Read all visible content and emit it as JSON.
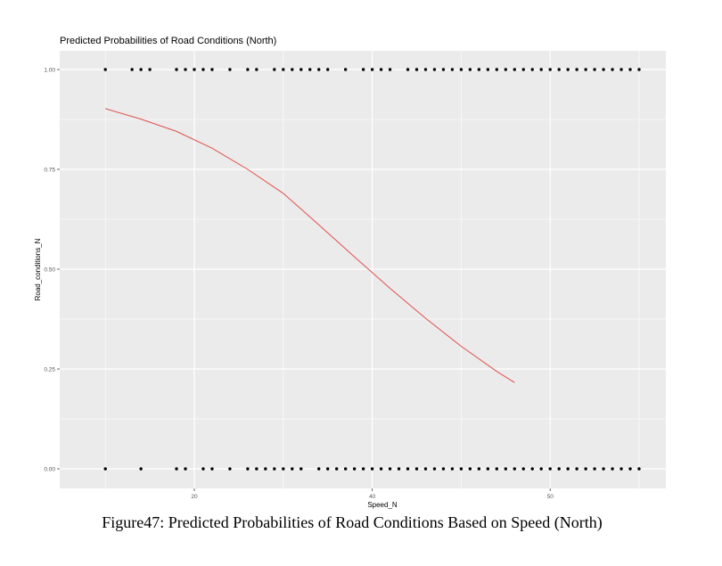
{
  "chart_data": {
    "type": "scatter",
    "title": "Predicted Probabilities of Road Conditions (North)",
    "xlabel": "Speed_N",
    "ylabel": "Road_conditions_N",
    "xlim": [
      7.5,
      57.5
    ],
    "ylim": [
      -0.05,
      1.05
    ],
    "x_ticks": [
      20,
      40,
      50
    ],
    "x_tick_labels": [
      "20",
      "40",
      "50"
    ],
    "y_ticks": [
      0,
      0.25,
      0.5,
      0.75,
      1.0
    ],
    "y_tick_labels": [
      "0.00",
      "0.25",
      "0.50",
      "0.75",
      "1.00"
    ],
    "grid": true,
    "panel_background": "#ebebeb",
    "grid_color": "#ffffff",
    "point_color": "#000000",
    "curve_color": "#e0504a",
    "series": [
      {
        "type": "scatter",
        "points_y1_x": [
          10,
          13,
          14,
          15,
          18,
          19,
          20,
          21,
          22,
          24,
          26,
          27,
          29,
          30,
          31,
          32,
          33,
          34,
          35,
          37,
          39,
          40,
          41,
          42,
          44,
          45,
          46,
          47,
          48,
          49,
          50,
          51,
          52,
          53,
          54,
          55,
          56,
          57,
          58,
          59,
          60,
          61,
          62,
          63,
          64,
          65,
          66,
          67,
          68,
          69,
          70
        ],
        "points_y0_x": [
          10,
          14,
          18,
          19,
          21,
          22,
          24,
          26,
          27,
          28,
          29,
          30,
          31,
          32,
          34,
          35,
          36,
          37,
          38,
          39,
          40,
          41,
          42,
          43,
          44,
          45,
          46,
          47,
          48,
          49,
          50,
          51,
          52,
          53,
          54,
          55,
          56,
          57,
          58,
          59,
          60,
          61,
          62,
          63,
          64,
          65,
          66,
          67,
          68,
          69,
          70
        ]
      },
      {
        "type": "line",
        "x": [
          10,
          14,
          18,
          22,
          26,
          30,
          34,
          38,
          42,
          46,
          50,
          54,
          56
        ],
        "y": [
          0.902,
          0.876,
          0.845,
          0.803,
          0.75,
          0.69,
          0.611,
          0.531,
          0.452,
          0.377,
          0.307,
          0.244,
          0.216
        ]
      }
    ]
  },
  "caption": "Figure47: Predicted Probabilities of Road Conditions Based on Speed (North)"
}
